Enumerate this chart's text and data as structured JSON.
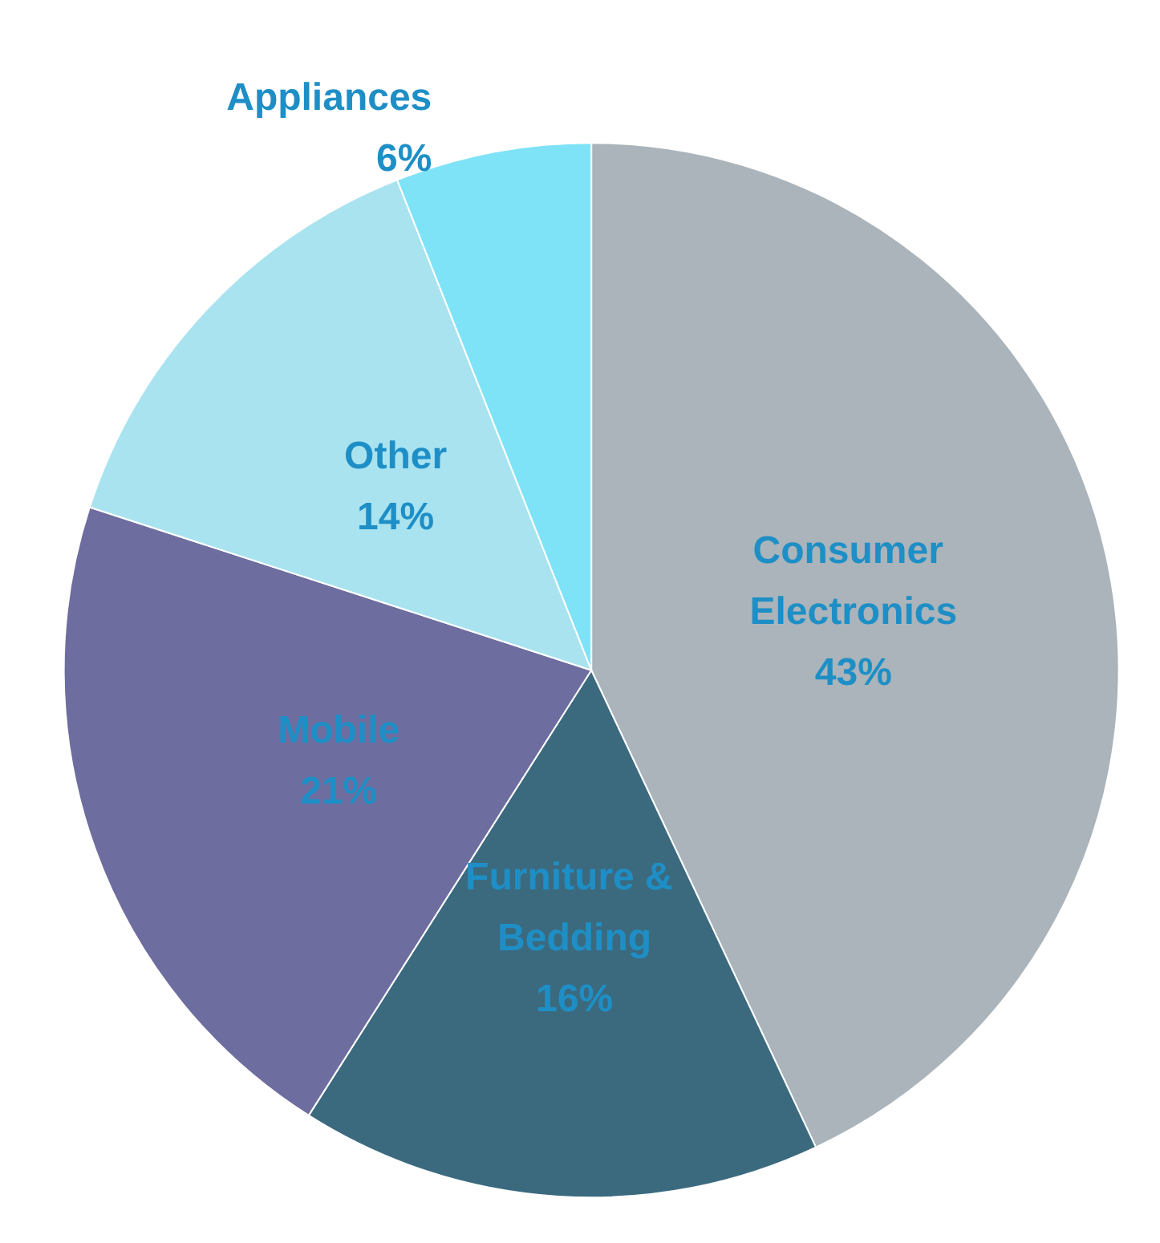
{
  "chart_data": {
    "type": "pie",
    "categories": [
      "Consumer Electronics",
      "Furniture & Bedding",
      "Mobile",
      "Other",
      "Appliances"
    ],
    "values": [
      43,
      16,
      21,
      14,
      6
    ],
    "value_labels": [
      "43%",
      "16%",
      "21%",
      "14%",
      "6%"
    ],
    "colors": [
      "#aab4ba",
      "#3b6a7f",
      "#6d6d9f",
      "#a9e3f0",
      "#7fe3f7"
    ],
    "legend": false
  }
}
